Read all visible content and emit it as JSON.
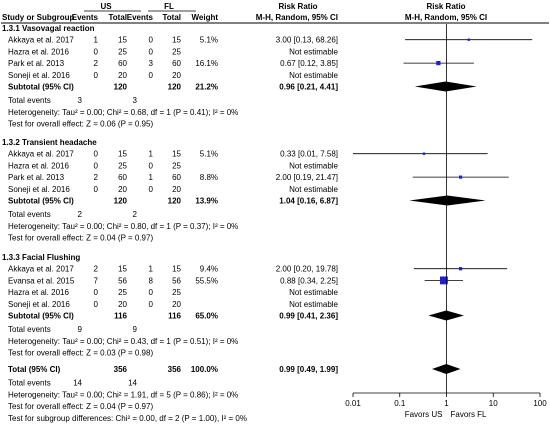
{
  "header": {
    "group1": "US",
    "group2": "FL",
    "rr_top": "Risk Ratio",
    "rr_sub": "M-H, Random, 95% CI",
    "cols": [
      "Study or Subgroup",
      "Events",
      "Total",
      "Events",
      "Total",
      "Weight"
    ]
  },
  "subgroups": [
    {
      "title": "1.3.1 Vasovagal reaction",
      "studies": [
        {
          "name": "Akkaya et al. 2017",
          "e1": "1",
          "t1": "15",
          "e2": "0",
          "t2": "15",
          "weight": "5.1%",
          "ci_text": "3.00 [0.13, 68.26]",
          "rr": 3.0,
          "lo": 0.13,
          "hi": 68.26
        },
        {
          "name": "Hazra et al. 2016",
          "e1": "0",
          "t1": "25",
          "e2": "0",
          "t2": "25",
          "weight": "",
          "ci_text": "Not estimable"
        },
        {
          "name": "Park et al. 2013",
          "e1": "2",
          "t1": "60",
          "e2": "3",
          "t2": "60",
          "weight": "16.1%",
          "ci_text": "0.67 [0.12, 3.85]",
          "rr": 0.67,
          "lo": 0.12,
          "hi": 3.85
        },
        {
          "name": "Soneji et al. 2016",
          "e1": "0",
          "t1": "20",
          "e2": "0",
          "t2": "20",
          "weight": "",
          "ci_text": "Not estimable"
        }
      ],
      "subtotal": {
        "label": "Subtotal (95% CI)",
        "t1": "120",
        "t2": "120",
        "weight": "21.2%",
        "ci_text": "0.96 [0.21, 4.41]",
        "rr": 0.96,
        "lo": 0.21,
        "hi": 4.41
      },
      "total_events": {
        "label": "Total events",
        "e1": "3",
        "e2": "3"
      },
      "heterogeneity": "Heterogeneity: Tau² = 0.00; Chi² = 0.68, df = 1 (P = 0.41); I² = 0%",
      "overall": "Test for overall effect: Z = 0.06 (P = 0.95)"
    },
    {
      "title": "1.3.2 Transient headache",
      "studies": [
        {
          "name": "Akkaya et al. 2017",
          "e1": "0",
          "t1": "15",
          "e2": "1",
          "t2": "15",
          "weight": "5.1%",
          "ci_text": "0.33 [0.01, 7.58]",
          "rr": 0.33,
          "lo": 0.01,
          "hi": 7.58
        },
        {
          "name": "Hazra et al. 2016",
          "e1": "0",
          "t1": "25",
          "e2": "0",
          "t2": "25",
          "weight": "",
          "ci_text": "Not estimable"
        },
        {
          "name": "Park et al. 2013",
          "e1": "2",
          "t1": "60",
          "e2": "1",
          "t2": "60",
          "weight": "8.8%",
          "ci_text": "2.00 [0.19, 21.47]",
          "rr": 2.0,
          "lo": 0.19,
          "hi": 21.47
        },
        {
          "name": "Soneji et al. 2016",
          "e1": "0",
          "t1": "20",
          "e2": "0",
          "t2": "20",
          "weight": "",
          "ci_text": "Not estimable"
        }
      ],
      "subtotal": {
        "label": "Subtotal (95% CI)",
        "t1": "120",
        "t2": "120",
        "weight": "13.9%",
        "ci_text": "1.04 [0.16, 6.87]",
        "rr": 1.04,
        "lo": 0.16,
        "hi": 6.87
      },
      "total_events": {
        "label": "Total events",
        "e1": "2",
        "e2": "2"
      },
      "heterogeneity": "Heterogeneity: Tau² = 0.00; Chi² = 0.80, df = 1 (P = 0.37); I² = 0%",
      "overall": "Test for overall effect: Z = 0.04 (P = 0.97)"
    },
    {
      "title": "1.3.3 Facial Flushing",
      "studies": [
        {
          "name": "Akkaya et al. 2017",
          "e1": "2",
          "t1": "15",
          "e2": "1",
          "t2": "15",
          "weight": "9.4%",
          "ci_text": "2.00 [0.20, 19.78]",
          "rr": 2.0,
          "lo": 0.2,
          "hi": 19.78
        },
        {
          "name": "Evansa et al. 2015",
          "e1": "7",
          "t1": "56",
          "e2": "8",
          "t2": "56",
          "weight": "55.5%",
          "ci_text": "0.88 [0.34, 2.25]",
          "rr": 0.88,
          "lo": 0.34,
          "hi": 2.25
        },
        {
          "name": "Hazra et al. 2016",
          "e1": "0",
          "t1": "25",
          "e2": "0",
          "t2": "25",
          "weight": "",
          "ci_text": "Not estimable"
        },
        {
          "name": "Soneji et al. 2016",
          "e1": "0",
          "t1": "20",
          "e2": "0",
          "t2": "20",
          "weight": "",
          "ci_text": "Not estimable"
        }
      ],
      "subtotal": {
        "label": "Subtotal (95% CI)",
        "t1": "116",
        "t2": "116",
        "weight": "65.0%",
        "ci_text": "0.99 [0.41, 2.36]",
        "rr": 0.99,
        "lo": 0.41,
        "hi": 2.36
      },
      "total_events": {
        "label": "Total events",
        "e1": "9",
        "e2": "9"
      },
      "heterogeneity": "Heterogeneity: Tau² = 0.00; Chi² = 0.43, df = 1 (P = 0.51); I² = 0%",
      "overall": "Test for overall effect: Z = 0.03 (P = 0.98)"
    }
  ],
  "total": {
    "label": "Total (95% CI)",
    "t1": "356",
    "t2": "356",
    "weight": "100.0%",
    "ci_text": "0.99 [0.49, 1.99]",
    "rr": 0.99,
    "lo": 0.49,
    "hi": 1.99,
    "events_label": "Total events",
    "e1": "14",
    "e2": "14",
    "heterogeneity": "Heterogeneity: Tau² = 0.00; Chi² = 1.91, df = 5 (P = 0.86); I² = 0%",
    "overall": "Test for overall effect: Z = 0.04 (P = 0.97)",
    "subgroup_diff": "Test for subgroup differences: Chi² = 0.00, df = 2 (P = 1.00), I² = 0%"
  },
  "axis": {
    "ticks": [
      0.01,
      0.1,
      1,
      10,
      100
    ],
    "tick_labels": [
      "0.01",
      "0.1",
      "1",
      "10",
      "100"
    ],
    "favors_left": "Favors US",
    "favors_right": "Favors FL",
    "scale": "log"
  },
  "colors": {
    "marker": "#1f1fd0",
    "diamond": "#000000",
    "line": "#000000"
  }
}
